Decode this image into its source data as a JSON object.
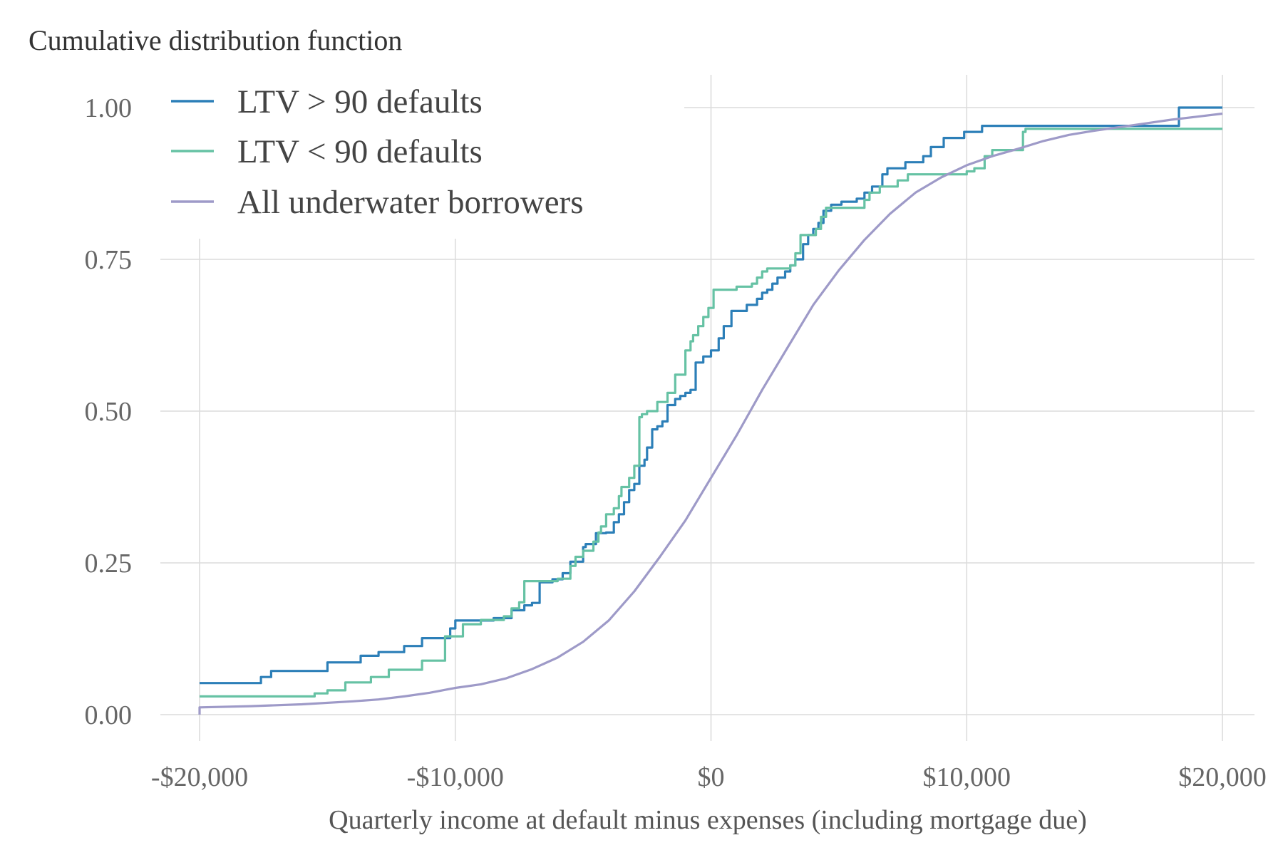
{
  "chart_data": {
    "type": "line",
    "title": "Cumulative distribution function",
    "xlabel": "Quarterly income at default minus expenses (including mortgage due)",
    "ylabel": "",
    "xlim": [
      -20000,
      20000
    ],
    "ylim": [
      0,
      1
    ],
    "x_ticks": [
      -20000,
      -10000,
      0,
      10000,
      20000
    ],
    "x_tick_labels": [
      "-$20,000",
      "-$10,000",
      "$0",
      "$10,000",
      "$20,000"
    ],
    "y_ticks": [
      0,
      0.25,
      0.5,
      0.75,
      1.0
    ],
    "y_tick_labels": [
      "0.00",
      "0.25",
      "0.50",
      "0.75",
      "1.00"
    ],
    "grid": true,
    "legend_position": "top-left",
    "series": [
      {
        "name": "LTV > 90 defaults",
        "color": "#2c7fb8",
        "step": true,
        "points": [
          [
            -20000,
            0.052
          ],
          [
            -17600,
            0.062
          ],
          [
            -17200,
            0.072
          ],
          [
            -15000,
            0.086
          ],
          [
            -13700,
            0.097
          ],
          [
            -13000,
            0.103
          ],
          [
            -12000,
            0.113
          ],
          [
            -11300,
            0.126
          ],
          [
            -10200,
            0.142
          ],
          [
            -10000,
            0.155
          ],
          [
            -8500,
            0.159
          ],
          [
            -7800,
            0.172
          ],
          [
            -7300,
            0.18
          ],
          [
            -7000,
            0.184
          ],
          [
            -6700,
            0.218
          ],
          [
            -6200,
            0.223
          ],
          [
            -5800,
            0.233
          ],
          [
            -5500,
            0.252
          ],
          [
            -5000,
            0.276
          ],
          [
            -4900,
            0.281
          ],
          [
            -4500,
            0.299
          ],
          [
            -4100,
            0.3
          ],
          [
            -3800,
            0.317
          ],
          [
            -3600,
            0.33
          ],
          [
            -3400,
            0.35
          ],
          [
            -3200,
            0.37
          ],
          [
            -3000,
            0.38
          ],
          [
            -2800,
            0.41
          ],
          [
            -2600,
            0.42
          ],
          [
            -2500,
            0.44
          ],
          [
            -2300,
            0.47
          ],
          [
            -2100,
            0.475
          ],
          [
            -1900,
            0.483
          ],
          [
            -1700,
            0.51
          ],
          [
            -1400,
            0.52
          ],
          [
            -1200,
            0.525
          ],
          [
            -1000,
            0.53
          ],
          [
            -800,
            0.535
          ],
          [
            -600,
            0.58
          ],
          [
            -300,
            0.59
          ],
          [
            0,
            0.6
          ],
          [
            300,
            0.62
          ],
          [
            500,
            0.64
          ],
          [
            800,
            0.665
          ],
          [
            1400,
            0.675
          ],
          [
            1800,
            0.685
          ],
          [
            2000,
            0.695
          ],
          [
            2200,
            0.7
          ],
          [
            2400,
            0.71
          ],
          [
            2600,
            0.72
          ],
          [
            2900,
            0.73
          ],
          [
            3100,
            0.74
          ],
          [
            3300,
            0.75
          ],
          [
            3600,
            0.775
          ],
          [
            3800,
            0.79
          ],
          [
            4000,
            0.8
          ],
          [
            4200,
            0.81
          ],
          [
            4400,
            0.83
          ],
          [
            4700,
            0.84
          ],
          [
            5100,
            0.845
          ],
          [
            5700,
            0.85
          ],
          [
            6000,
            0.86
          ],
          [
            6300,
            0.87
          ],
          [
            6700,
            0.89
          ],
          [
            6900,
            0.9
          ],
          [
            7600,
            0.91
          ],
          [
            8300,
            0.92
          ],
          [
            8600,
            0.935
          ],
          [
            9100,
            0.95
          ],
          [
            9900,
            0.96
          ],
          [
            10600,
            0.97
          ],
          [
            18300,
            1.0
          ],
          [
            20000,
            1.0
          ]
        ]
      },
      {
        "name": "LTV < 90 defaults",
        "color": "#66c2a4",
        "step": true,
        "points": [
          [
            -20000,
            0.03
          ],
          [
            -15500,
            0.035
          ],
          [
            -15000,
            0.04
          ],
          [
            -14300,
            0.053
          ],
          [
            -13300,
            0.062
          ],
          [
            -12600,
            0.074
          ],
          [
            -11300,
            0.089
          ],
          [
            -10400,
            0.129
          ],
          [
            -9700,
            0.149
          ],
          [
            -9000,
            0.156
          ],
          [
            -8100,
            0.162
          ],
          [
            -7800,
            0.175
          ],
          [
            -7500,
            0.185
          ],
          [
            -7300,
            0.22
          ],
          [
            -6000,
            0.224
          ],
          [
            -5500,
            0.245
          ],
          [
            -5300,
            0.26
          ],
          [
            -5000,
            0.27
          ],
          [
            -4600,
            0.285
          ],
          [
            -4400,
            0.3
          ],
          [
            -4300,
            0.31
          ],
          [
            -4100,
            0.33
          ],
          [
            -3800,
            0.34
          ],
          [
            -3600,
            0.36
          ],
          [
            -3500,
            0.375
          ],
          [
            -3200,
            0.39
          ],
          [
            -3000,
            0.41
          ],
          [
            -2800,
            0.49
          ],
          [
            -2700,
            0.495
          ],
          [
            -2500,
            0.5
          ],
          [
            -2100,
            0.515
          ],
          [
            -1700,
            0.53
          ],
          [
            -1400,
            0.56
          ],
          [
            -1000,
            0.6
          ],
          [
            -800,
            0.615
          ],
          [
            -700,
            0.625
          ],
          [
            -500,
            0.64
          ],
          [
            -300,
            0.655
          ],
          [
            -100,
            0.67
          ],
          [
            100,
            0.7
          ],
          [
            1000,
            0.705
          ],
          [
            1600,
            0.71
          ],
          [
            1800,
            0.72
          ],
          [
            2000,
            0.73
          ],
          [
            2200,
            0.735
          ],
          [
            3100,
            0.74
          ],
          [
            3300,
            0.76
          ],
          [
            3500,
            0.79
          ],
          [
            4100,
            0.8
          ],
          [
            4300,
            0.82
          ],
          [
            4500,
            0.835
          ],
          [
            6000,
            0.848
          ],
          [
            6200,
            0.86
          ],
          [
            6600,
            0.87
          ],
          [
            7300,
            0.88
          ],
          [
            7700,
            0.89
          ],
          [
            10000,
            0.895
          ],
          [
            10300,
            0.9
          ],
          [
            10700,
            0.92
          ],
          [
            11000,
            0.93
          ],
          [
            12200,
            0.96
          ],
          [
            12300,
            0.965
          ],
          [
            20000,
            0.965
          ]
        ]
      },
      {
        "name": "All underwater borrowers",
        "color": "#9e9ac8",
        "step": false,
        "points": [
          [
            -20000,
            0.0
          ],
          [
            -20000,
            0.012
          ],
          [
            -18000,
            0.014
          ],
          [
            -16000,
            0.017
          ],
          [
            -14000,
            0.022
          ],
          [
            -13000,
            0.025
          ],
          [
            -12000,
            0.03
          ],
          [
            -11000,
            0.036
          ],
          [
            -10000,
            0.044
          ],
          [
            -9000,
            0.05
          ],
          [
            -8000,
            0.06
          ],
          [
            -7000,
            0.075
          ],
          [
            -6000,
            0.094
          ],
          [
            -5000,
            0.12
          ],
          [
            -4000,
            0.155
          ],
          [
            -3000,
            0.203
          ],
          [
            -2000,
            0.26
          ],
          [
            -1000,
            0.32
          ],
          [
            0,
            0.39
          ],
          [
            1000,
            0.46
          ],
          [
            2000,
            0.535
          ],
          [
            3000,
            0.605
          ],
          [
            4000,
            0.675
          ],
          [
            5000,
            0.732
          ],
          [
            6000,
            0.782
          ],
          [
            7000,
            0.825
          ],
          [
            8000,
            0.86
          ],
          [
            9000,
            0.885
          ],
          [
            10000,
            0.905
          ],
          [
            11000,
            0.92
          ],
          [
            12000,
            0.932
          ],
          [
            13000,
            0.945
          ],
          [
            14000,
            0.955
          ],
          [
            15000,
            0.962
          ],
          [
            16000,
            0.968
          ],
          [
            17000,
            0.974
          ],
          [
            18000,
            0.98
          ],
          [
            19000,
            0.985
          ],
          [
            20000,
            0.99
          ]
        ]
      }
    ]
  }
}
